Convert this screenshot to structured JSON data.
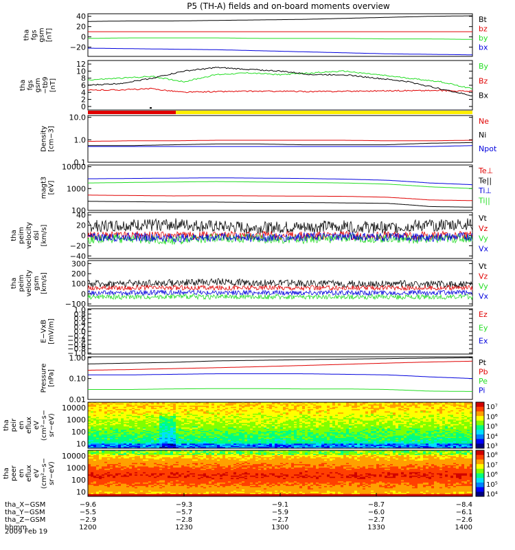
{
  "title": "P5 (TH-A) fields and on-board moments overview",
  "date_label": "2009 Feb 19",
  "colors": {
    "black": "#000000",
    "red": "#e00000",
    "green": "#22dd22",
    "blue": "#0000dd",
    "yellow": "#ffee00"
  },
  "chart_data": [
    {
      "id": "p1",
      "type": "line",
      "ylabel": [
        "tha",
        "fgs",
        "gsm",
        "[nT]"
      ],
      "ylim": [
        -38,
        45
      ],
      "log": false,
      "yticks": [
        40,
        20,
        0,
        -20
      ],
      "ytick_labels": [
        "40",
        "20",
        "0",
        "−20"
      ],
      "series": [
        {
          "name": "Bt",
          "color": "black",
          "values": [
            30,
            31,
            31,
            32,
            33,
            34,
            36,
            38,
            40,
            41
          ]
        },
        {
          "name": "bz",
          "color": "red",
          "values": [
            10,
            10,
            10,
            10,
            10,
            10,
            10,
            10,
            10,
            10
          ]
        },
        {
          "name": "by",
          "color": "green",
          "values": [
            -3,
            -2,
            -2,
            -2,
            -3,
            -3,
            -3,
            -4,
            -4,
            -5
          ]
        },
        {
          "name": "bx",
          "color": "blue",
          "values": [
            -22,
            -23,
            -24,
            -25,
            -27,
            -29,
            -31,
            -33,
            -34,
            -35
          ]
        }
      ]
    },
    {
      "id": "p2",
      "type": "line",
      "ylabel": [
        "tha",
        "fgs",
        "gsm",
        "−tb9",
        "[nT]"
      ],
      "ylim": [
        -1,
        13
      ],
      "log": false,
      "yticks": [
        12,
        10,
        8,
        6,
        4,
        2,
        0
      ],
      "ytick_labels": [
        "12",
        "10",
        "8",
        "6",
        "4",
        "2",
        "0"
      ],
      "series": [
        {
          "name": "By",
          "color": "green",
          "values": [
            7.5,
            8,
            8.5,
            7,
            9,
            9.5,
            9,
            9.5,
            10,
            9,
            8,
            7,
            5
          ]
        },
        {
          "name": "Bz",
          "color": "red",
          "values": [
            4.6,
            4.7,
            5,
            4,
            4.2,
            4.3,
            4.3,
            4.2,
            4.3,
            4.4,
            4.5,
            4.5,
            4.3
          ]
        },
        {
          "name": "Bx",
          "color": "black",
          "values": [
            6,
            6.5,
            8,
            10,
            11,
            10.5,
            10,
            9,
            9,
            8,
            7,
            5,
            3
          ]
        }
      ]
    },
    {
      "id": "p3",
      "type": "line",
      "ylabel": [
        "Density",
        "[cm−3]"
      ],
      "ylim": [
        0.1,
        12
      ],
      "log": true,
      "yticks": [
        10,
        1,
        0.1
      ],
      "ytick_labels": [
        "10.0",
        "1.0",
        "0.1"
      ],
      "series": [
        {
          "name": "Ne",
          "color": "red",
          "values": [
            0.85,
            0.9,
            0.9,
            0.95,
            0.95,
            0.95,
            0.95,
            0.9,
            0.9,
            0.95
          ]
        },
        {
          "name": "Ni",
          "color": "black",
          "values": [
            0.55,
            0.55,
            0.6,
            0.65,
            0.65,
            0.6,
            0.6,
            0.6,
            0.7,
            0.75
          ]
        },
        {
          "name": "Npot",
          "color": "blue",
          "values": [
            0.5,
            0.5,
            0.5,
            0.5,
            0.5,
            0.5,
            0.5,
            0.5,
            0.5,
            0.55
          ]
        }
      ]
    },
    {
      "id": "p4",
      "type": "line",
      "ylabel": [
        "magt3",
        "[eV]"
      ],
      "ylim": [
        100,
        12000
      ],
      "log": true,
      "yticks": [
        10000,
        1000,
        100
      ],
      "ytick_labels": [
        "10000",
        "1000",
        "100"
      ],
      "series": [
        {
          "name": "Te⊥",
          "color": "red",
          "values": [
            500,
            480,
            460,
            470,
            460,
            450,
            440,
            400,
            300,
            280
          ]
        },
        {
          "name": "Te||",
          "color": "black",
          "values": [
            260,
            250,
            240,
            240,
            230,
            230,
            220,
            210,
            150,
            140
          ]
        },
        {
          "name": "Ti⊥",
          "color": "blue",
          "values": [
            2800,
            2900,
            3000,
            3100,
            3000,
            2900,
            2700,
            2400,
            1800,
            1500
          ]
        },
        {
          "name": "Ti||",
          "color": "green",
          "values": [
            1800,
            1900,
            2000,
            2100,
            2000,
            1900,
            1800,
            1600,
            1200,
            1000
          ]
        }
      ]
    },
    {
      "id": "p5",
      "type": "line",
      "ylabel": [
        "tha",
        "peim",
        "velocity",
        "dsl",
        "[km/s]"
      ],
      "ylim": [
        -45,
        45
      ],
      "log": false,
      "yticks": [
        40,
        20,
        0,
        -20,
        -40
      ],
      "ytick_labels": [
        "40",
        "20",
        "0",
        "−20",
        "−40"
      ],
      "series": [
        {
          "name": "Vt",
          "color": "black",
          "values": [
            18,
            20,
            22,
            17,
            15,
            16,
            18,
            15,
            20,
            22
          ]
        },
        {
          "name": "Vz",
          "color": "red",
          "values": [
            0,
            0,
            -1,
            0,
            0,
            0,
            0,
            0,
            0,
            0
          ]
        },
        {
          "name": "Vy",
          "color": "green",
          "values": [
            -8,
            -6,
            -10,
            -5,
            -6,
            -8,
            -5,
            -6,
            -8,
            -5
          ]
        },
        {
          "name": "Vx",
          "color": "blue",
          "values": [
            -4,
            -3,
            -5,
            -3,
            -4,
            -3,
            -2,
            -3,
            -4,
            -2
          ]
        }
      ]
    },
    {
      "id": "p6",
      "type": "line",
      "ylabel": [
        "tha",
        "peim",
        "velocity",
        "gsm",
        "[km/s]"
      ],
      "ylim": [
        -120,
        330
      ],
      "log": false,
      "yticks": [
        300,
        200,
        100,
        0,
        -100
      ],
      "ytick_labels": [
        "300",
        "200",
        "100",
        "0",
        "−100"
      ],
      "series": [
        {
          "name": "Vt",
          "color": "black",
          "values": [
            100,
            105,
            110,
            120,
            110,
            105,
            100,
            100,
            95,
            95
          ]
        },
        {
          "name": "Vz",
          "color": "red",
          "values": [
            60,
            60,
            60,
            60,
            60,
            60,
            60,
            60,
            60,
            60
          ]
        },
        {
          "name": "Vy",
          "color": "green",
          "values": [
            -30,
            -30,
            -25,
            -30,
            -30,
            -30,
            -30,
            -30,
            -30,
            -30
          ]
        },
        {
          "name": "Vx",
          "color": "blue",
          "values": [
            10,
            10,
            15,
            10,
            10,
            10,
            10,
            10,
            10,
            10
          ]
        }
      ]
    },
    {
      "id": "p7",
      "type": "line",
      "ylabel": [
        "E−VxB",
        "[mV/m]"
      ],
      "ylim": [
        -1.05,
        1.05
      ],
      "log": false,
      "yticks": [
        1,
        0.8,
        0.6,
        0.4,
        0.2,
        0,
        -0.2,
        -0.4,
        -0.6,
        -0.8,
        -1
      ],
      "ytick_labels": [
        "1.0",
        "0.8",
        "0.6",
        "0.4",
        "0.2",
        "0.0",
        "−0.2",
        "−0.4",
        "−0.6",
        "−0.8",
        "−1.0"
      ],
      "series": [
        {
          "name": "Ez",
          "color": "red",
          "values": []
        },
        {
          "name": "Ey",
          "color": "green",
          "values": []
        },
        {
          "name": "Ex",
          "color": "blue",
          "values": []
        }
      ]
    },
    {
      "id": "p8",
      "type": "line",
      "ylabel": [
        "Pressure",
        "[nPa]"
      ],
      "ylim": [
        0.01,
        1.1
      ],
      "log": true,
      "yticks": [
        1,
        0.1,
        0.01
      ],
      "ytick_labels": [
        "1.00",
        "0.10",
        "0.01"
      ],
      "series": [
        {
          "name": "Pt",
          "color": "black",
          "values": [
            0.5,
            0.55,
            0.6,
            0.7,
            0.75,
            0.8,
            0.85,
            0.9,
            0.95,
            1.0
          ]
        },
        {
          "name": "Pb",
          "color": "red",
          "values": [
            0.25,
            0.27,
            0.3,
            0.33,
            0.37,
            0.42,
            0.48,
            0.55,
            0.62,
            0.68
          ]
        },
        {
          "name": "Pe",
          "color": "green",
          "values": [
            0.03,
            0.03,
            0.032,
            0.033,
            0.033,
            0.032,
            0.032,
            0.03,
            0.025,
            0.024
          ]
        },
        {
          "name": "Pi",
          "color": "blue",
          "values": [
            0.15,
            0.15,
            0.16,
            0.17,
            0.17,
            0.17,
            0.16,
            0.15,
            0.12,
            0.1
          ]
        }
      ]
    },
    {
      "id": "s1",
      "type": "heatmap",
      "ylabel": [
        "tha",
        "peir",
        "en",
        "eflux",
        "eV",
        "(cm²−s−",
        "sr−eV)"
      ],
      "yticks": [
        10000,
        1000,
        100,
        10
      ],
      "ytick_labels": [
        "10000",
        "1000",
        "100",
        "10"
      ],
      "cbar_ticks": [
        "10⁷",
        "10⁶",
        "10⁵",
        "10⁴",
        "10³"
      ]
    },
    {
      "id": "s2",
      "type": "heatmap",
      "ylabel": [
        "tha",
        "peer",
        "en",
        "eflux",
        "eV",
        "(cm²−s−",
        "sr−eV)"
      ],
      "yticks": [
        10000,
        1000,
        100,
        10
      ],
      "ytick_labels": [
        "10000",
        "1000",
        "100",
        "10"
      ],
      "cbar_ticks": [
        "10⁸",
        "10⁷",
        "10⁶",
        "10⁵",
        "10⁴"
      ]
    }
  ],
  "xaxis": {
    "row_labels": [
      "tha_X−GSM",
      "tha_Y−GSM",
      "tha_Z−GSM",
      "hhmm"
    ],
    "columns": [
      [
        "−9.6",
        "−5.5",
        "−2.9",
        "1200"
      ],
      [
        "−9.3",
        "−5.7",
        "−2.8",
        "1230"
      ],
      [
        "−9.1",
        "−5.9",
        "−2.7",
        "1300"
      ],
      [
        "−8.7",
        "−6.0",
        "−2.7",
        "1330"
      ],
      [
        "−8.4",
        "−6.1",
        "−2.6",
        "1400"
      ]
    ]
  }
}
